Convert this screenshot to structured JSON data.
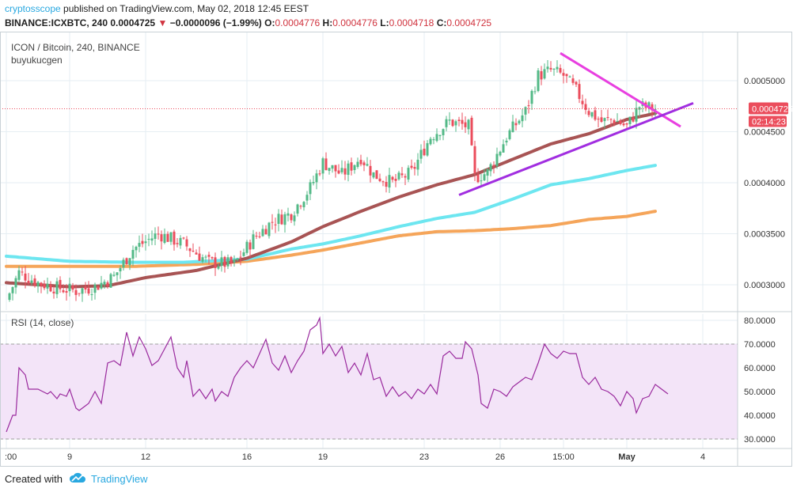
{
  "header": {
    "author": "cryptosscope",
    "published_text": "published on TradingView.com, May 02, 2018 12:45 EEST",
    "symbol": "BINANCE:ICXBTC, 240",
    "last": "0.0004725",
    "change": "−0.0000096 (−1.99%)",
    "o_label": "O:",
    "o_value": "0.0004776",
    "h_label": "H:",
    "h_value": "0.0004776",
    "l_label": "L:",
    "l_value": "0.0004718",
    "c_label": "C:",
    "c_value": "0.0004725"
  },
  "legend": {
    "pair": "ICON / Bitcoin, 240, BINANCE",
    "author": "buyukucgen",
    "rsi_label": "RSI (14, close)"
  },
  "price_scale": {
    "current_price": "0.0004725",
    "countdown": "02:14:23"
  },
  "footer": {
    "created_with": "Created with",
    "brand": "TradingView"
  },
  "colors": {
    "up": "#53b987",
    "down": "#eb4d5c",
    "ma_short": "#a85454",
    "ma_mid": "#6de6f0",
    "ma_long": "#f5a55a",
    "trend_upper": "#e83fe0",
    "trend_lower": "#a12ee0",
    "rsi_line": "#9a2a9e",
    "rsi_band": "#f3e4f8"
  },
  "chart_data": [
    {
      "type": "candlestick",
      "title": "ICON / Bitcoin, 240, BINANCE",
      "x_ticks": [
        ":00",
        "9",
        "12",
        "16",
        "19",
        "23",
        "26",
        "15:00",
        "May",
        "4"
      ],
      "x_tick_index": [
        0,
        20,
        44,
        76,
        100,
        132,
        156,
        176,
        196,
        220
      ],
      "y_ticks": [
        0.0003,
        0.00035,
        0.0004,
        0.00045,
        0.0005
      ],
      "y_tick_labels": [
        "0.0003000",
        "0.0003500",
        "0.0004000",
        "0.0004500",
        "0.0005000"
      ],
      "ylim": [
        0.00027,
        0.00053
      ],
      "current_price": 0.0004725,
      "close_anchors": [
        [
          0,
          0.000285
        ],
        [
          4,
          0.000312
        ],
        [
          10,
          0.000302
        ],
        [
          16,
          0.000297
        ],
        [
          22,
          0.000294
        ],
        [
          28,
          0.000298
        ],
        [
          34,
          0.000308
        ],
        [
          40,
          0.000335
        ],
        [
          48,
          0.00035
        ],
        [
          56,
          0.00034
        ],
        [
          64,
          0.000322
        ],
        [
          72,
          0.00032
        ],
        [
          78,
          0.000345
        ],
        [
          84,
          0.000362
        ],
        [
          90,
          0.00037
        ],
        [
          96,
          0.000395
        ],
        [
          100,
          0.00042
        ],
        [
          106,
          0.000408
        ],
        [
          112,
          0.000425
        ],
        [
          116,
          0.000408
        ],
        [
          122,
          0.0004
        ],
        [
          128,
          0.00041
        ],
        [
          134,
          0.000445
        ],
        [
          140,
          0.00046
        ],
        [
          146,
          0.000455
        ],
        [
          148,
          0.000405
        ],
        [
          152,
          0.00041
        ],
        [
          158,
          0.000445
        ],
        [
          164,
          0.00047
        ],
        [
          168,
          0.000505
        ],
        [
          172,
          0.00051
        ],
        [
          176,
          0.000505
        ],
        [
          180,
          0.00049
        ],
        [
          184,
          0.00047
        ],
        [
          188,
          0.00046
        ],
        [
          192,
          0.000462
        ],
        [
          196,
          0.000455
        ],
        [
          200,
          0.000475
        ],
        [
          205,
          0.0004725
        ]
      ],
      "series": [
        {
          "name": "",
          "color": "#a85454",
          "points": [
            [
              0,
              0.000302
            ],
            [
              20,
              0.000298
            ],
            [
              32,
              0.000299
            ],
            [
              44,
              0.000307
            ],
            [
              60,
              0.000314
            ],
            [
              76,
              0.000326
            ],
            [
              90,
              0.000342
            ],
            [
              100,
              0.000357
            ],
            [
              112,
              0.000372
            ],
            [
              124,
              0.000386
            ],
            [
              136,
              0.000398
            ],
            [
              148,
              0.000408
            ],
            [
              160,
              0.000423
            ],
            [
              172,
              0.000438
            ],
            [
              184,
              0.000448
            ],
            [
              196,
              0.000462
            ],
            [
              205,
              0.000468
            ]
          ]
        },
        {
          "name": "",
          "color": "#6de6f0",
          "points": [
            [
              0,
              0.000328
            ],
            [
              20,
              0.000323
            ],
            [
              40,
              0.000322
            ],
            [
              56,
              0.000322
            ],
            [
              76,
              0.000325
            ],
            [
              90,
              0.000335
            ],
            [
              100,
              0.00034
            ],
            [
              112,
              0.000348
            ],
            [
              124,
              0.000357
            ],
            [
              136,
              0.000365
            ],
            [
              148,
              0.000371
            ],
            [
              160,
              0.000384
            ],
            [
              172,
              0.000398
            ],
            [
              184,
              0.000404
            ],
            [
              196,
              0.000412
            ],
            [
              205,
              0.000417
            ]
          ]
        },
        {
          "name": "",
          "color": "#f5a55a",
          "points": [
            [
              0,
              0.000318
            ],
            [
              20,
              0.000318
            ],
            [
              40,
              0.000318
            ],
            [
              60,
              0.00032
            ],
            [
              76,
              0.000323
            ],
            [
              90,
              0.000329
            ],
            [
              100,
              0.000334
            ],
            [
              112,
              0.000341
            ],
            [
              124,
              0.000348
            ],
            [
              136,
              0.000352
            ],
            [
              148,
              0.000353
            ],
            [
              160,
              0.000355
            ],
            [
              172,
              0.000358
            ],
            [
              184,
              0.000364
            ],
            [
              196,
              0.000367
            ],
            [
              205,
              0.000372
            ]
          ]
        }
      ],
      "trendlines": [
        {
          "name": "",
          "color": "#e83fe0",
          "from": [
            175,
            0.000527
          ],
          "to": [
            213,
            0.000455
          ]
        },
        {
          "name": "",
          "color": "#a12ee0",
          "from": [
            143,
            0.000388
          ],
          "to": [
            217,
            0.000478
          ]
        }
      ]
    },
    {
      "type": "line",
      "title": "RSI (14, close)",
      "ylim": [
        27,
        83
      ],
      "y_ticks": [
        30,
        40,
        50,
        60,
        70,
        80
      ],
      "y_tick_labels": [
        "30.0000",
        "40.0000",
        "50.0000",
        "60.0000",
        "70.0000",
        "80.0000"
      ],
      "band": [
        30,
        70
      ],
      "anchors": [
        [
          0,
          33
        ],
        [
          2,
          40
        ],
        [
          3,
          40
        ],
        [
          4,
          60
        ],
        [
          6,
          57
        ],
        [
          7,
          51
        ],
        [
          10,
          51
        ],
        [
          13,
          49
        ],
        [
          14,
          50
        ],
        [
          16,
          47
        ],
        [
          17,
          49
        ],
        [
          19,
          48
        ],
        [
          20,
          51
        ],
        [
          22,
          43
        ],
        [
          23,
          42
        ],
        [
          26,
          45
        ],
        [
          28,
          50
        ],
        [
          30,
          45
        ],
        [
          32,
          62
        ],
        [
          34,
          63
        ],
        [
          36,
          61
        ],
        [
          38,
          75
        ],
        [
          40,
          65
        ],
        [
          42,
          73
        ],
        [
          44,
          68
        ],
        [
          46,
          61
        ],
        [
          48,
          63
        ],
        [
          50,
          68
        ],
        [
          52,
          73
        ],
        [
          54,
          60
        ],
        [
          56,
          56
        ],
        [
          57,
          63
        ],
        [
          59,
          48
        ],
        [
          61,
          51
        ],
        [
          63,
          47
        ],
        [
          65,
          51
        ],
        [
          66,
          46
        ],
        [
          68,
          50
        ],
        [
          70,
          48
        ],
        [
          72,
          56
        ],
        [
          74,
          60
        ],
        [
          76,
          63
        ],
        [
          78,
          60
        ],
        [
          80,
          66
        ],
        [
          82,
          72
        ],
        [
          84,
          62
        ],
        [
          86,
          59
        ],
        [
          88,
          65
        ],
        [
          90,
          58
        ],
        [
          92,
          63
        ],
        [
          94,
          67
        ],
        [
          96,
          76
        ],
        [
          98,
          78
        ],
        [
          99,
          81
        ],
        [
          100,
          66
        ],
        [
          102,
          70
        ],
        [
          104,
          65
        ],
        [
          106,
          69
        ],
        [
          108,
          58
        ],
        [
          110,
          62
        ],
        [
          112,
          57
        ],
        [
          114,
          66
        ],
        [
          116,
          55
        ],
        [
          118,
          56
        ],
        [
          120,
          48
        ],
        [
          122,
          52
        ],
        [
          124,
          48
        ],
        [
          126,
          50
        ],
        [
          128,
          47
        ],
        [
          130,
          51
        ],
        [
          132,
          49
        ],
        [
          134,
          53
        ],
        [
          136,
          49
        ],
        [
          138,
          65
        ],
        [
          140,
          67
        ],
        [
          142,
          64
        ],
        [
          144,
          64
        ],
        [
          145,
          71
        ],
        [
          147,
          68
        ],
        [
          149,
          57
        ],
        [
          150,
          45
        ],
        [
          152,
          43
        ],
        [
          154,
          51
        ],
        [
          156,
          50
        ],
        [
          158,
          48
        ],
        [
          160,
          52
        ],
        [
          162,
          54
        ],
        [
          164,
          56
        ],
        [
          166,
          55
        ],
        [
          168,
          62
        ],
        [
          170,
          70
        ],
        [
          172,
          66
        ],
        [
          174,
          64
        ],
        [
          176,
          67
        ],
        [
          178,
          66
        ],
        [
          180,
          66
        ],
        [
          182,
          56
        ],
        [
          184,
          53
        ],
        [
          186,
          56
        ],
        [
          188,
          51
        ],
        [
          190,
          50
        ],
        [
          192,
          48
        ],
        [
          194,
          44
        ],
        [
          196,
          50
        ],
        [
          198,
          47
        ],
        [
          199,
          41
        ],
        [
          201,
          47
        ],
        [
          203,
          48
        ],
        [
          205,
          53
        ],
        [
          207,
          51
        ],
        [
          209,
          49
        ]
      ]
    }
  ]
}
